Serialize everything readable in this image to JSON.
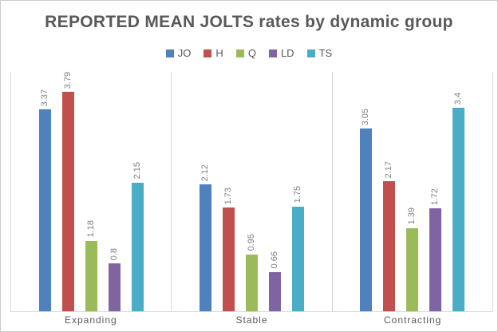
{
  "chart_data": {
    "type": "bar",
    "title": "REPORTED MEAN JOLTS rates by dynamic group",
    "categories": [
      "Expanding",
      "Stable",
      "Contracting"
    ],
    "series": [
      {
        "name": "JO",
        "color": "#4F81BD",
        "values": [
          3.37,
          2.12,
          3.05
        ]
      },
      {
        "name": "H",
        "color": "#C0504D",
        "values": [
          3.79,
          1.73,
          2.17
        ]
      },
      {
        "name": "Q",
        "color": "#9BBB59",
        "values": [
          1.18,
          0.95,
          1.39
        ]
      },
      {
        "name": "LD",
        "color": "#8064A2",
        "values": [
          0.8,
          0.66,
          1.72
        ]
      },
      {
        "name": "TS",
        "color": "#4BACC6",
        "values": [
          2.15,
          1.75,
          3.4
        ]
      }
    ],
    "ylim": [
      0,
      4
    ],
    "xlabel": "",
    "ylabel": "",
    "grid": "vertical-panel-separators",
    "legend_position": "top",
    "data_labels": "rotated-90-above-bars",
    "colors": {
      "title_text": "#595959",
      "category_text": "#595959",
      "value_label_text": "#7f7f7f",
      "axis_line": "#d9d9d9",
      "border": "#cccccc",
      "background": "#ffffff"
    }
  }
}
